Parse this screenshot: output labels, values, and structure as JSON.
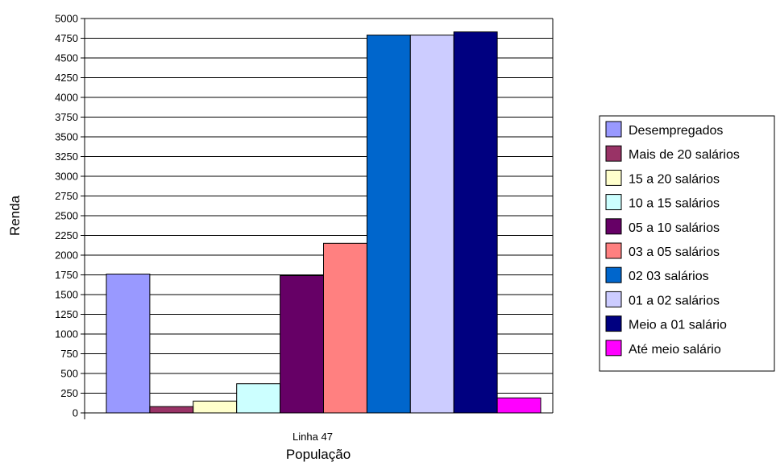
{
  "chart_data": {
    "type": "bar",
    "title": "",
    "xlabel": "População",
    "ylabel": "Renda",
    "categories": [
      "Linha 47"
    ],
    "ylim": [
      0,
      5000
    ],
    "ytick_step": 250,
    "yticks": [
      "0",
      "250",
      "500",
      "750",
      "1000",
      "1250",
      "1500",
      "1750",
      "2000",
      "2250",
      "2500",
      "2750",
      "3000",
      "3250",
      "3500",
      "3750",
      "4000",
      "4250",
      "4500",
      "4750",
      "5000"
    ],
    "grid": true,
    "legend_position": "right",
    "series": [
      {
        "name": "Desempregados",
        "values": [
          1760
        ],
        "color": "#9999ff"
      },
      {
        "name": "Mais de 20 salários",
        "values": [
          80
        ],
        "color": "#993366"
      },
      {
        "name": "15 a 20 salários",
        "values": [
          150
        ],
        "color": "#ffffcc"
      },
      {
        "name": "10 a 15 salários",
        "values": [
          370
        ],
        "color": "#ccffff"
      },
      {
        "name": "05 a 10 salários",
        "values": [
          1740
        ],
        "color": "#660066"
      },
      {
        "name": "03 a 05 salários",
        "values": [
          2150
        ],
        "color": "#ff8080"
      },
      {
        "name": "02 03 salários",
        "values": [
          4790
        ],
        "color": "#0066cc"
      },
      {
        "name": "01 a 02 salários",
        "values": [
          4790
        ],
        "color": "#ccccff"
      },
      {
        "name": "Meio a 01 salário",
        "values": [
          4830
        ],
        "color": "#000080"
      },
      {
        "name": "Até meio salário",
        "values": [
          190
        ],
        "color": "#ff00ff"
      }
    ]
  }
}
